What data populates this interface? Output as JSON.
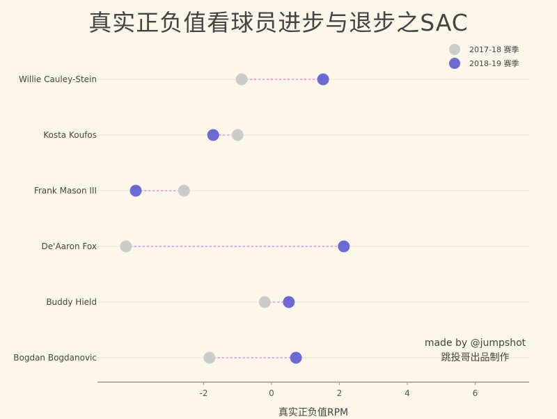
{
  "title": "真实正负值看球员进步与退步之SAC",
  "legend": [
    {
      "label": "2017-18 赛季",
      "color": "#cccccc"
    },
    {
      "label": "2018-19 赛季",
      "color": "#6a6ad0"
    }
  ],
  "credit": {
    "line1": "made by @jumpshot",
    "line2": "跳投哥出品制作"
  },
  "axis": {
    "xlabel": "真实正负值RPM",
    "ticks": [
      "-2",
      "0",
      "2",
      "4",
      "6"
    ]
  },
  "colors": {
    "background": "#fdf6ea",
    "gray": "#cccccc",
    "purple": "#6a6ad0",
    "connector": "#f08be0",
    "grid": "#f0e8dc"
  },
  "chart_data": {
    "type": "dumbbell",
    "title": "真实正负值看球员进步与退步之SAC",
    "xlabel": "真实正负值RPM",
    "ylabel": "",
    "xlim": [
      -5.1,
      7.6
    ],
    "xticks": [
      -2,
      0,
      2,
      4,
      6
    ],
    "grid": "horizontal",
    "legend_position": "top-right",
    "categories": [
      "Willie Cauley-Stein",
      "Kosta Koufos",
      "Frank Mason III",
      "De'Aaron Fox",
      "Buddy Hield",
      "Bogdan Bogdanovic"
    ],
    "series": [
      {
        "name": "2017-18 赛季",
        "values": [
          -0.88,
          -1.0,
          -2.58,
          -4.29,
          -0.2,
          -1.83
        ]
      },
      {
        "name": "2018-19 赛季",
        "values": [
          1.52,
          -1.72,
          -4.0,
          2.13,
          0.51,
          0.72
        ]
      }
    ]
  }
}
